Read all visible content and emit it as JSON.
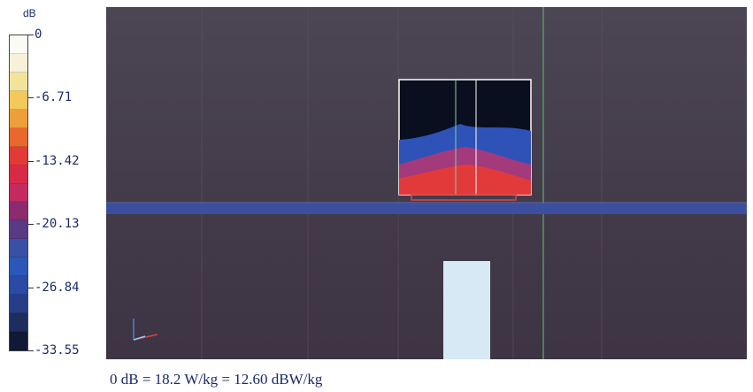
{
  "legend": {
    "unit": "dB",
    "ticks": [
      "0",
      "-6.71",
      "-13.42",
      "-20.13",
      "-26.84",
      "-33.55"
    ],
    "colors": [
      "#fbfbf5",
      "#f7f2d7",
      "#f3e39a",
      "#f2c95a",
      "#ee9f3a",
      "#e8682e",
      "#e23a36",
      "#d82a46",
      "#c52a5f",
      "#8c2b6d",
      "#5a3a86",
      "#3850a6",
      "#2a58b8",
      "#2a4aa4",
      "#263e88",
      "#1c2d5e",
      "#111a34"
    ]
  },
  "footer": {
    "text": "0 dB = 18.2 W/kg = 12.60 dBW/kg"
  },
  "plot": {
    "background": "#463f4d",
    "band_color": "#3c4f9e",
    "inset_colors": {
      "dark": "#0a0f1f",
      "blue": "#2f52b8",
      "magenta": "#a23a7c",
      "red": "#e23a3a"
    },
    "block_color": "#d7e9f4"
  }
}
